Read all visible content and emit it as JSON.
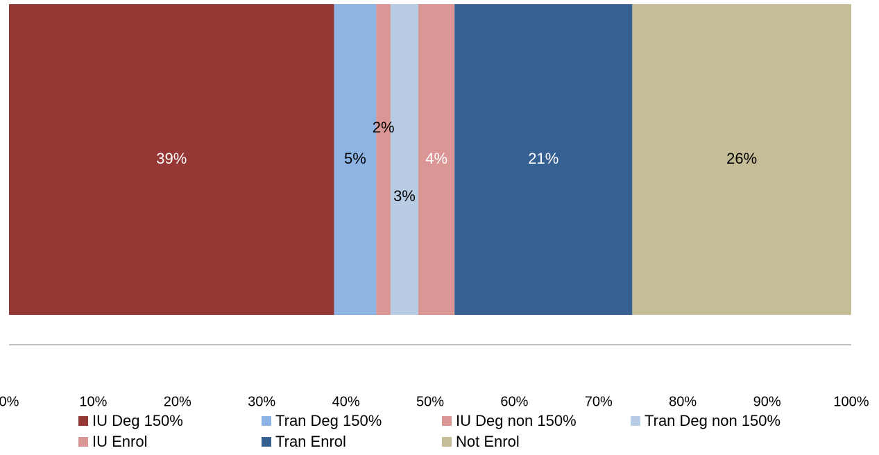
{
  "chart_data": {
    "type": "bar",
    "orientation": "horizontal",
    "stacked": "100%",
    "title": "",
    "xlabel": "",
    "ylabel": "",
    "xlim": [
      0,
      100
    ],
    "x_ticks": [
      "0%",
      "10%",
      "20%",
      "30%",
      "40%",
      "50%",
      "60%",
      "70%",
      "80%",
      "90%",
      "100%"
    ],
    "grid": false,
    "legend_position": "bottom",
    "series": [
      {
        "name": "IU Deg 150%",
        "value": 38.6,
        "label": "39%",
        "color": "#953735",
        "label_color": "#ffffff"
      },
      {
        "name": "Tran Deg 150%",
        "value": 5.0,
        "label": "5%",
        "color": "#8DB4E2",
        "label_color": "#000000"
      },
      {
        "name": "IU Deg non 150%",
        "value": 1.7,
        "label": "2%",
        "color": "#DA9694",
        "label_color": "#000000"
      },
      {
        "name": "Tran Deg non 150%",
        "value": 3.3,
        "label": "3%",
        "color": "#B8CCE4",
        "label_color": "#000000"
      },
      {
        "name": "IU Enrol",
        "value": 4.3,
        "label": "4%",
        "color": "#DA9694",
        "label_color": "#ffffff"
      },
      {
        "name": "Tran Enrol",
        "value": 21.1,
        "label": "21%",
        "color": "#366092",
        "label_color": "#ffffff"
      },
      {
        "name": "Not Enrol",
        "value": 26.0,
        "label": "26%",
        "color": "#C4BD97",
        "label_color": "#000000"
      }
    ]
  }
}
